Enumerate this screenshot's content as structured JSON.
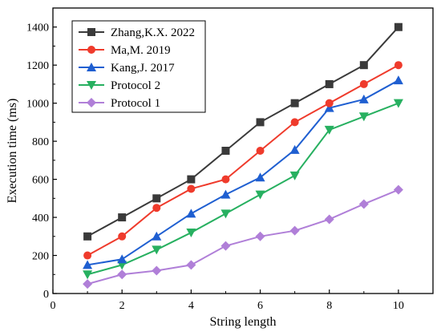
{
  "chart_data": {
    "type": "line",
    "xlabel": "String length",
    "ylabel": "Execution time (ms)",
    "xlim": [
      0,
      11
    ],
    "ylim": [
      0,
      1500
    ],
    "xticks": [
      0,
      2,
      4,
      6,
      8,
      10
    ],
    "yticks": [
      0,
      200,
      400,
      600,
      800,
      1000,
      1200,
      1400
    ],
    "grid": false,
    "legend_position": "top-left",
    "x": [
      1,
      2,
      3,
      4,
      5,
      6,
      7,
      8,
      9,
      10
    ],
    "series": [
      {
        "name": "Zhang,K.X. 2022",
        "color": "#3a3a3a",
        "marker": "square",
        "values": [
          300,
          400,
          500,
          600,
          750,
          900,
          1000,
          1100,
          1200,
          1400
        ]
      },
      {
        "name": "Ma,M. 2019",
        "color": "#ef3b2c",
        "marker": "circle",
        "values": [
          200,
          300,
          450,
          550,
          600,
          750,
          900,
          1000,
          1100,
          1200
        ]
      },
      {
        "name": "Kang,J. 2017",
        "color": "#1f5fd1",
        "marker": "triangle-up",
        "values": [
          150,
          180,
          300,
          420,
          520,
          610,
          755,
          975,
          1020,
          1120
        ]
      },
      {
        "name": "Protocol 2",
        "color": "#27b060",
        "marker": "triangle-down",
        "values": [
          100,
          150,
          230,
          320,
          420,
          520,
          620,
          860,
          930,
          1000
        ]
      },
      {
        "name": "Protocol 1",
        "color": "#b07fd8",
        "marker": "diamond",
        "values": [
          50,
          100,
          120,
          150,
          250,
          300,
          330,
          390,
          470,
          545
        ]
      }
    ]
  }
}
